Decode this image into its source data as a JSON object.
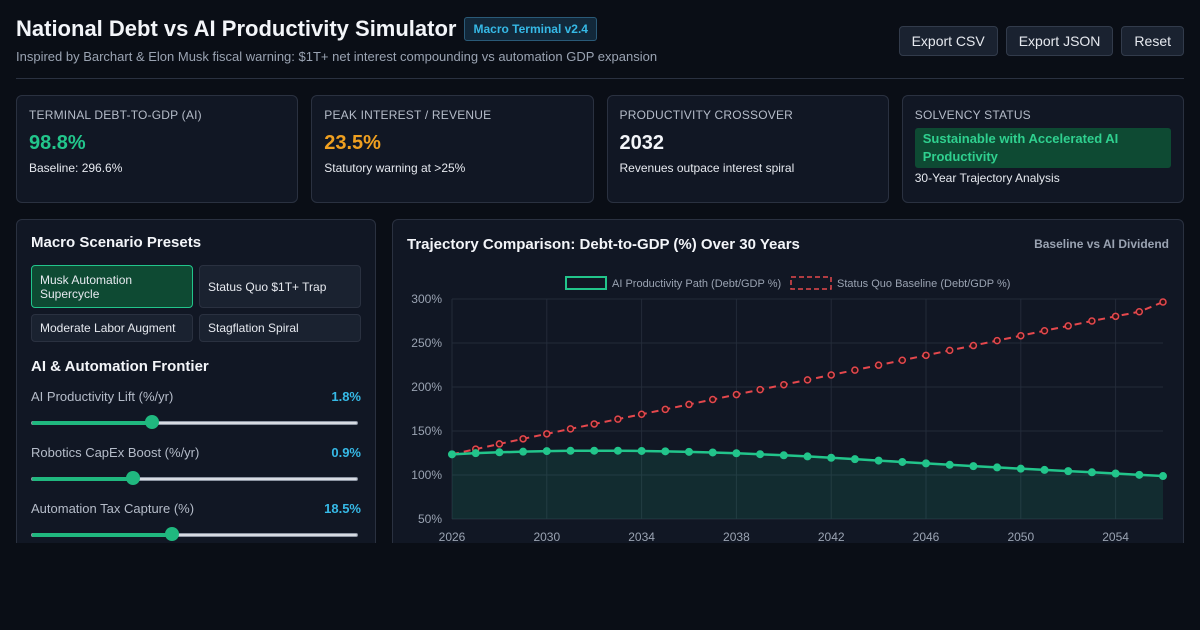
{
  "header": {
    "title": "National Debt vs AI Productivity Simulator",
    "badge": "Macro Terminal v2.4",
    "subtitle": "Inspired by Barchart & Elon Musk fiscal warning: $1T+ net interest compounding vs automation GDP expansion",
    "export_csv": "Export CSV",
    "export_json": "Export JSON",
    "reset": "Reset"
  },
  "cards": [
    {
      "label": "Terminal Debt-to-GDP (AI)",
      "value": "98.8%",
      "note": "Baseline: 296.6%"
    },
    {
      "label": "Peak Interest / Revenue",
      "value": "23.5%",
      "note": "Statutory warning at >25%"
    },
    {
      "label": "Productivity Crossover",
      "value": "2032",
      "note": "Revenues outpace interest spiral"
    },
    {
      "label": "Solvency Status",
      "value": "Sustainable with Accelerated AI Productivity",
      "note": "30-Year Trajectory Analysis"
    }
  ],
  "presets": {
    "title": "Macro Scenario Presets",
    "items": [
      "Musk Automation Supercycle",
      "Status Quo $1T+ Trap",
      "Moderate Labor Augment",
      "Stagflation Spiral"
    ],
    "active_index": 0
  },
  "frontier": {
    "title": "AI & Automation Frontier",
    "sliders": [
      {
        "label": "AI Productivity Lift (%/yr)",
        "value": "1.8%",
        "fraction": 0.37
      },
      {
        "label": "Robotics CapEx Boost (%/yr)",
        "value": "0.9%",
        "fraction": 0.31
      },
      {
        "label": "Automation Tax Capture (%)",
        "value": "18.5%",
        "fraction": 0.43
      }
    ]
  },
  "chart": {
    "title": "Trajectory Comparison: Debt-to-GDP (%) Over 30 Years",
    "subtitle": "Baseline vs AI Dividend"
  },
  "colors": {
    "ai": "#22c58b",
    "baseline": "#e5484d",
    "accent": "#36b9e6",
    "warning": "#f0a020"
  },
  "chart_data": {
    "type": "line",
    "x": [
      2026,
      2027,
      2028,
      2029,
      2030,
      2031,
      2032,
      2033,
      2034,
      2035,
      2036,
      2037,
      2038,
      2039,
      2040,
      2041,
      2042,
      2043,
      2044,
      2045,
      2046,
      2047,
      2048,
      2049,
      2050,
      2051,
      2052,
      2053,
      2054,
      2055,
      2056
    ],
    "series": [
      {
        "name": "AI Productivity Path (Debt/GDP %)",
        "values": [
          123.5,
          124.8,
          125.8,
          126.5,
          127.2,
          127.5,
          127.6,
          127.6,
          127.3,
          126.9,
          126.3,
          125.6,
          124.7,
          123.6,
          122.4,
          121.1,
          119.6,
          118.0,
          116.4,
          114.8,
          113.2,
          111.6,
          110.1,
          108.6,
          107.2,
          105.8,
          104.4,
          103.1,
          101.7,
          100.2,
          98.8
        ]
      },
      {
        "name": "Status Quo Baseline (Debt/GDP %)",
        "values": [
          123.5,
          129.4,
          135.3,
          141.1,
          146.8,
          152.4,
          158.0,
          163.5,
          169.0,
          174.6,
          180.2,
          185.8,
          191.4,
          197.0,
          202.6,
          208.1,
          213.7,
          219.2,
          224.8,
          230.4,
          236.0,
          241.6,
          247.1,
          252.7,
          258.3,
          263.9,
          269.4,
          275.0,
          280.3,
          285.5,
          296.6
        ]
      }
    ],
    "x_ticks": [
      "2026",
      "2030",
      "2034",
      "2038",
      "2042",
      "2046",
      "2050",
      "2054"
    ],
    "y_ticks": [
      "50%",
      "100%",
      "150%",
      "200%",
      "250%",
      "300%"
    ],
    "ylim": [
      50,
      300
    ],
    "xlim": [
      2026,
      2056
    ],
    "legend": "top-center",
    "grid": true
  }
}
